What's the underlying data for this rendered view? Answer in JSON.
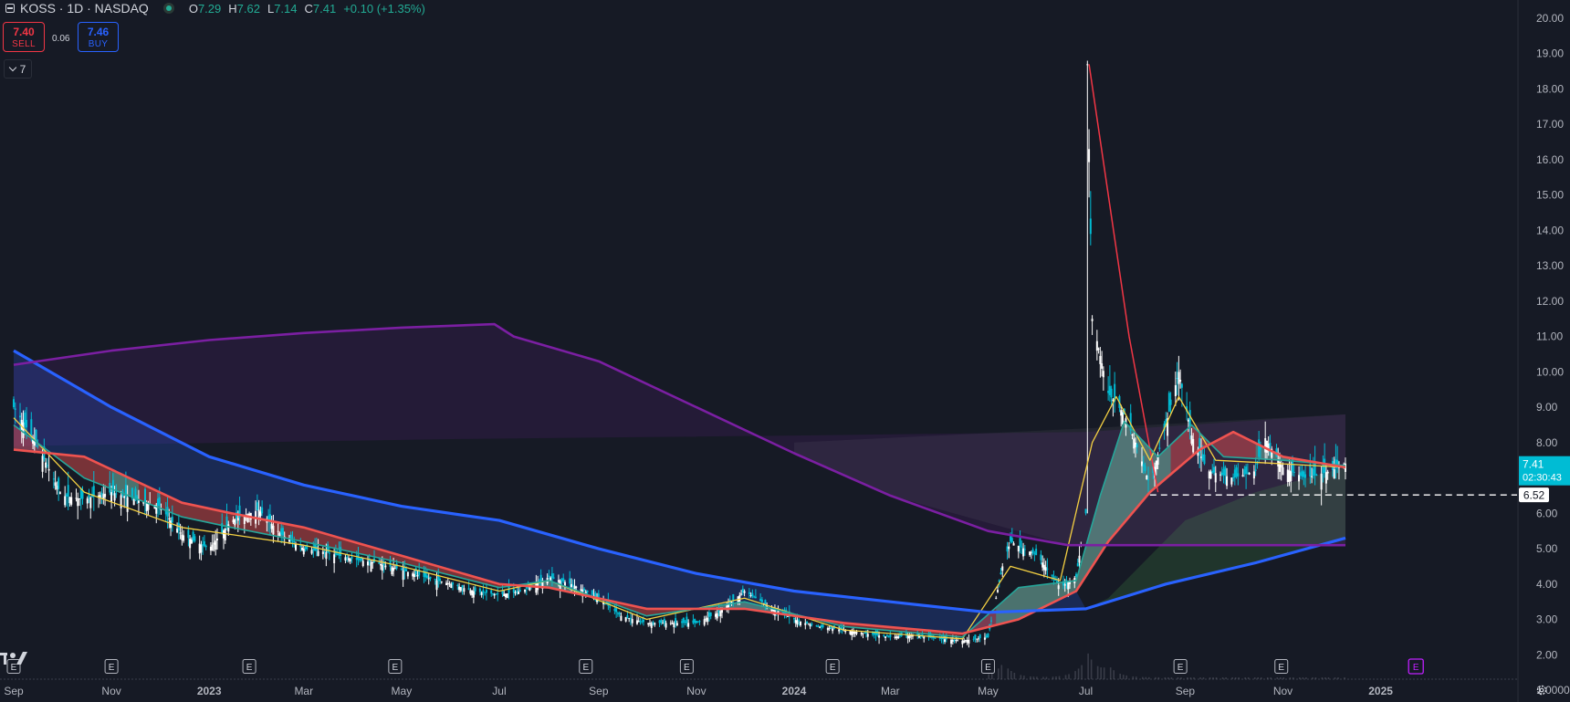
{
  "header": {
    "title": "KOSS · 1D · NASDAQ",
    "ohlc": [
      {
        "key": "O",
        "value": "7.29"
      },
      {
        "key": "H",
        "value": "7.62"
      },
      {
        "key": "L",
        "value": "7.14"
      },
      {
        "key": "C",
        "value": "7.41"
      },
      {
        "key": "",
        "value": "+0.10 (+1.35%)"
      }
    ]
  },
  "trade": {
    "sell_price": "7.40",
    "sell_label": "SELL",
    "buy_price": "7.46",
    "buy_label": "BUY",
    "spread": "0.06"
  },
  "indicators_toggle": {
    "count": "7"
  },
  "colors": {
    "background": "#161a25",
    "up": "#22ab94",
    "down": "#f23645",
    "price_line": "#00bcd4",
    "ema_fast": "#f5d142",
    "ema_mid": "#26a69a",
    "ema_slow": "#ef5350",
    "ma_blue": "#2962ff",
    "ma_purple": "#7b1fa2",
    "earnings_badge": "#c020ff"
  },
  "chart_data": {
    "type": "candlestick",
    "symbol": "KOSS",
    "interval": "1D",
    "exchange": "NASDAQ",
    "x_range": [
      "2022-09-01",
      "2025-01-28"
    ],
    "ylim": [
      1.0,
      20.0
    ],
    "y_ticks": [
      "20.00",
      "19.00",
      "18.00",
      "17.00",
      "16.00",
      "15.00",
      "14.00",
      "13.00",
      "12.00",
      "11.00",
      "10.00",
      "9.00",
      "8.00",
      "7.00",
      "6.00",
      "5.00",
      "4.00",
      "3.00",
      "2.00",
      "1.0000"
    ],
    "y_tick_values": [
      20,
      19,
      18,
      17,
      16,
      15,
      14,
      13,
      12,
      11,
      10,
      9,
      8,
      7,
      6,
      5,
      4,
      3,
      2,
      1
    ],
    "x_ticks": [
      {
        "label": "Sep",
        "date": "2022-09-01",
        "bold": false
      },
      {
        "label": "Nov",
        "date": "2022-11-01",
        "bold": false
      },
      {
        "label": "2023",
        "date": "2023-01-01",
        "bold": true
      },
      {
        "label": "Mar",
        "date": "2023-03-01",
        "bold": false
      },
      {
        "label": "May",
        "date": "2023-05-01",
        "bold": false
      },
      {
        "label": "Jul",
        "date": "2023-07-01",
        "bold": false
      },
      {
        "label": "Sep",
        "date": "2023-09-01",
        "bold": false
      },
      {
        "label": "Nov",
        "date": "2023-11-01",
        "bold": false
      },
      {
        "label": "2024",
        "date": "2024-01-01",
        "bold": true
      },
      {
        "label": "Mar",
        "date": "2024-03-01",
        "bold": false
      },
      {
        "label": "May",
        "date": "2024-05-01",
        "bold": false
      },
      {
        "label": "Jul",
        "date": "2024-07-01",
        "bold": false
      },
      {
        "label": "Sep",
        "date": "2024-09-01",
        "bold": false
      },
      {
        "label": "Nov",
        "date": "2024-11-01",
        "bold": false
      },
      {
        "label": "2025",
        "date": "2025-01-01",
        "bold": true
      }
    ],
    "last_price": {
      "value": 7.41,
      "label": "7.41",
      "countdown": "02:30:43"
    },
    "horizontal_line": {
      "value": 6.52,
      "label": "6.52"
    },
    "earnings_marker_label": "E",
    "earnings_dates": [
      "2022-09-01",
      "2022-11-01",
      "2023-01-26",
      "2023-04-27",
      "2023-08-24",
      "2023-10-26",
      "2024-01-25",
      "2024-05-01",
      "2024-08-29",
      "2024-10-31"
    ],
    "upcoming_earnings_date": "2025-01-23",
    "close_path": [
      [
        "2022-09-01",
        9.0
      ],
      [
        "2022-09-15",
        8.0
      ],
      [
        "2022-10-01",
        6.5
      ],
      [
        "2022-10-15",
        6.4
      ],
      [
        "2022-11-01",
        6.6
      ],
      [
        "2022-11-15",
        6.4
      ],
      [
        "2022-12-01",
        6.2
      ],
      [
        "2022-12-15",
        5.4
      ],
      [
        "2023-01-01",
        5.0
      ],
      [
        "2023-01-15",
        5.8
      ],
      [
        "2023-02-01",
        6.1
      ],
      [
        "2023-02-15",
        5.4
      ],
      [
        "2023-03-01",
        5.0
      ],
      [
        "2023-03-15",
        4.9
      ],
      [
        "2023-04-01",
        4.7
      ],
      [
        "2023-04-15",
        4.6
      ],
      [
        "2023-05-01",
        4.4
      ],
      [
        "2023-05-15",
        4.2
      ],
      [
        "2023-06-01",
        4.0
      ],
      [
        "2023-06-15",
        3.8
      ],
      [
        "2023-07-01",
        3.7
      ],
      [
        "2023-07-15",
        3.8
      ],
      [
        "2023-08-01",
        4.2
      ],
      [
        "2023-08-15",
        4.0
      ],
      [
        "2023-09-01",
        3.6
      ],
      [
        "2023-09-15",
        3.1
      ],
      [
        "2023-10-01",
        2.9
      ],
      [
        "2023-10-15",
        2.9
      ],
      [
        "2023-11-01",
        2.9
      ],
      [
        "2023-11-15",
        3.2
      ],
      [
        "2023-12-01",
        3.8
      ],
      [
        "2023-12-15",
        3.4
      ],
      [
        "2024-01-01",
        3.0
      ],
      [
        "2024-01-15",
        2.8
      ],
      [
        "2024-02-01",
        2.7
      ],
      [
        "2024-02-15",
        2.6
      ],
      [
        "2024-03-01",
        2.5
      ],
      [
        "2024-03-15",
        2.55
      ],
      [
        "2024-04-01",
        2.45
      ],
      [
        "2024-04-15",
        2.4
      ],
      [
        "2024-05-01",
        2.5
      ],
      [
        "2024-05-10",
        4.5
      ],
      [
        "2024-05-15",
        5.2
      ],
      [
        "2024-06-01",
        4.8
      ],
      [
        "2024-06-15",
        3.9
      ],
      [
        "2024-06-25",
        4.2
      ],
      [
        "2024-07-01",
        6.0
      ],
      [
        "2024-07-02",
        18.7
      ],
      [
        "2024-07-05",
        11.5
      ],
      [
        "2024-07-15",
        9.4
      ],
      [
        "2024-07-25",
        8.8
      ],
      [
        "2024-08-01",
        8.0
      ],
      [
        "2024-08-10",
        6.8
      ],
      [
        "2024-08-20",
        8.5
      ],
      [
        "2024-08-28",
        10.0
      ],
      [
        "2024-09-05",
        8.2
      ],
      [
        "2024-09-15",
        7.2
      ],
      [
        "2024-10-01",
        7.0
      ],
      [
        "2024-10-15",
        7.2
      ],
      [
        "2024-10-20",
        8.2
      ],
      [
        "2024-11-01",
        7.3
      ],
      [
        "2024-11-15",
        7.0
      ],
      [
        "2024-12-01",
        7.2
      ],
      [
        "2024-12-10",
        7.41
      ]
    ],
    "series": [
      {
        "type": "line",
        "color": "#f5d142",
        "values": [
          [
            "2022-09-01",
            8.7
          ],
          [
            "2022-10-15",
            6.6
          ],
          [
            "2022-12-15",
            5.6
          ],
          [
            "2023-01-15",
            5.4
          ],
          [
            "2023-03-01",
            5.1
          ],
          [
            "2023-05-01",
            4.5
          ],
          [
            "2023-07-01",
            3.8
          ],
          [
            "2023-08-01",
            4.1
          ],
          [
            "2023-10-01",
            3.0
          ],
          [
            "2023-12-01",
            3.6
          ],
          [
            "2024-02-01",
            2.7
          ],
          [
            "2024-04-15",
            2.45
          ],
          [
            "2024-05-15",
            4.5
          ],
          [
            "2024-06-15",
            4.1
          ],
          [
            "2024-07-05",
            8.0
          ],
          [
            "2024-07-20",
            9.3
          ],
          [
            "2024-08-10",
            7.5
          ],
          [
            "2024-08-28",
            9.3
          ],
          [
            "2024-09-20",
            7.5
          ],
          [
            "2024-11-01",
            7.4
          ],
          [
            "2024-12-10",
            7.3
          ]
        ]
      },
      {
        "type": "line",
        "color": "#26a69a",
        "values": [
          [
            "2022-09-01",
            8.5
          ],
          [
            "2022-10-15",
            7.0
          ],
          [
            "2022-12-15",
            5.9
          ],
          [
            "2023-01-15",
            5.6
          ],
          [
            "2023-03-01",
            5.2
          ],
          [
            "2023-05-01",
            4.6
          ],
          [
            "2023-07-01",
            3.9
          ],
          [
            "2023-08-01",
            4.1
          ],
          [
            "2023-10-01",
            3.1
          ],
          [
            "2023-12-01",
            3.5
          ],
          [
            "2024-02-01",
            2.8
          ],
          [
            "2024-04-15",
            2.5
          ],
          [
            "2024-05-20",
            3.9
          ],
          [
            "2024-06-25",
            4.1
          ],
          [
            "2024-07-10",
            6.5
          ],
          [
            "2024-07-25",
            8.6
          ],
          [
            "2024-08-15",
            7.6
          ],
          [
            "2024-09-05",
            8.5
          ],
          [
            "2024-09-25",
            7.6
          ],
          [
            "2024-11-01",
            7.5
          ],
          [
            "2024-12-10",
            7.35
          ]
        ]
      },
      {
        "type": "line",
        "color": "#ef5350",
        "values": [
          [
            "2022-09-01",
            7.8
          ],
          [
            "2022-10-15",
            7.6
          ],
          [
            "2022-12-15",
            6.3
          ],
          [
            "2023-01-15",
            6.0
          ],
          [
            "2023-03-01",
            5.6
          ],
          [
            "2023-05-01",
            4.8
          ],
          [
            "2023-07-01",
            4.0
          ],
          [
            "2023-08-01",
            3.9
          ],
          [
            "2023-10-01",
            3.3
          ],
          [
            "2023-12-01",
            3.3
          ],
          [
            "2024-02-01",
            2.9
          ],
          [
            "2024-04-15",
            2.6
          ],
          [
            "2024-05-20",
            3.0
          ],
          [
            "2024-06-25",
            3.8
          ],
          [
            "2024-07-15",
            5.2
          ],
          [
            "2024-08-10",
            6.6
          ],
          [
            "2024-09-10",
            7.8
          ],
          [
            "2024-10-01",
            8.3
          ],
          [
            "2024-11-01",
            7.6
          ],
          [
            "2024-12-10",
            7.3
          ]
        ]
      },
      {
        "type": "line",
        "color": "#2962ff",
        "values": [
          [
            "2022-09-01",
            10.6
          ],
          [
            "2022-11-01",
            9.0
          ],
          [
            "2023-01-01",
            7.6
          ],
          [
            "2023-03-01",
            6.8
          ],
          [
            "2023-05-01",
            6.2
          ],
          [
            "2023-07-01",
            5.8
          ],
          [
            "2023-09-01",
            5.0
          ],
          [
            "2023-11-01",
            4.3
          ],
          [
            "2024-01-01",
            3.8
          ],
          [
            "2024-03-01",
            3.5
          ],
          [
            "2024-05-01",
            3.2
          ],
          [
            "2024-07-01",
            3.3
          ],
          [
            "2024-08-20",
            4.0
          ],
          [
            "2024-10-15",
            4.6
          ],
          [
            "2024-12-10",
            5.3
          ]
        ]
      },
      {
        "type": "line",
        "color": "#7b1fa2",
        "values": [
          [
            "2022-09-01",
            10.2
          ],
          [
            "2022-11-01",
            10.6
          ],
          [
            "2023-01-01",
            10.9
          ],
          [
            "2023-03-01",
            11.1
          ],
          [
            "2023-05-01",
            11.25
          ],
          [
            "2023-06-28",
            11.35
          ],
          [
            "2023-07-10",
            11.0
          ],
          [
            "2023-09-01",
            10.3
          ],
          [
            "2023-11-01",
            9.0
          ],
          [
            "2024-01-01",
            7.7
          ],
          [
            "2024-03-01",
            6.5
          ],
          [
            "2024-05-01",
            5.5
          ],
          [
            "2024-06-20",
            5.1
          ],
          [
            "2024-09-01",
            5.1
          ],
          [
            "2024-12-10",
            5.1
          ]
        ]
      }
    ],
    "volume_peaks": [
      [
        "2024-05-10",
        1.6
      ],
      [
        "2024-07-02",
        2.5
      ],
      [
        "2024-07-15",
        1.0
      ]
    ]
  }
}
